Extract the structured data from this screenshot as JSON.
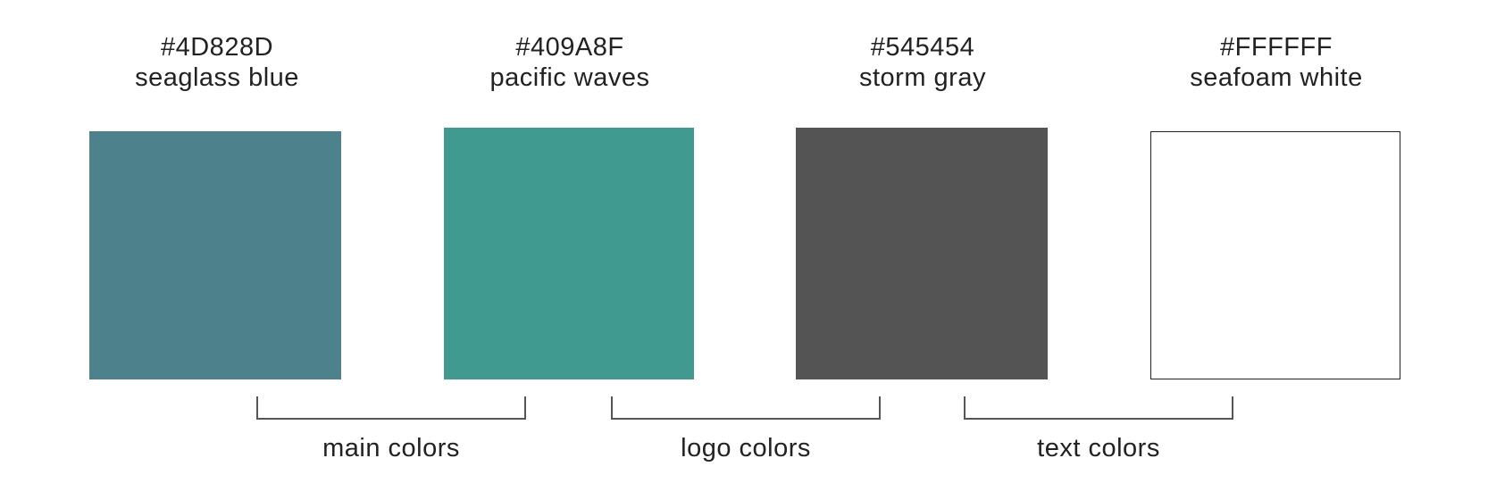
{
  "swatches": [
    {
      "hex": "#4D828D",
      "name": "seaglass blue",
      "color": "#4D828D"
    },
    {
      "hex": "#409A8F",
      "name": "pacific waves",
      "color": "#409A8F"
    },
    {
      "hex": "#545454",
      "name": "storm gray",
      "color": "#545454"
    },
    {
      "hex": "#FFFFFF",
      "name": "seafoam white",
      "color": "#FFFFFF"
    }
  ],
  "groups": [
    {
      "label": "main colors"
    },
    {
      "label": "logo colors"
    },
    {
      "label": "text colors"
    }
  ]
}
